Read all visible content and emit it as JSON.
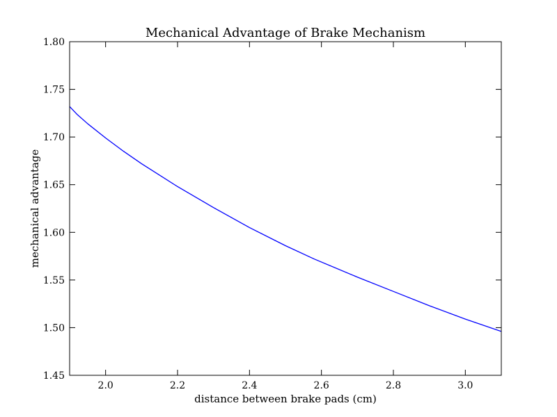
{
  "chart_data": {
    "type": "line",
    "title": "Mechanical Advantage of Brake Mechanism",
    "xlabel": "distance between brake pads (cm)",
    "ylabel": "mechanical advantage",
    "xlim": [
      1.9,
      3.1
    ],
    "ylim": [
      1.45,
      1.8
    ],
    "xticks": [
      2.0,
      2.2,
      2.4,
      2.6,
      2.8,
      3.0
    ],
    "xtick_labels": [
      "2.0",
      "2.2",
      "2.4",
      "2.6",
      "2.8",
      "3.0"
    ],
    "yticks": [
      1.45,
      1.5,
      1.55,
      1.6,
      1.65,
      1.7,
      1.75,
      1.8
    ],
    "ytick_labels": [
      "1.45",
      "1.50",
      "1.55",
      "1.60",
      "1.65",
      "1.70",
      "1.75",
      "1.80"
    ],
    "grid": false,
    "series": [
      {
        "color": "#0000ff",
        "x": [
          1.9,
          1.92,
          1.95,
          2.0,
          2.05,
          2.1,
          2.2,
          2.3,
          2.4,
          2.5,
          2.58,
          2.7,
          2.8,
          2.9,
          3.0,
          3.1
        ],
        "y": [
          1.732,
          1.724,
          1.714,
          1.699,
          1.685,
          1.672,
          1.648,
          1.626,
          1.605,
          1.586,
          1.572,
          1.553,
          1.538,
          1.523,
          1.509,
          1.496
        ]
      }
    ]
  }
}
